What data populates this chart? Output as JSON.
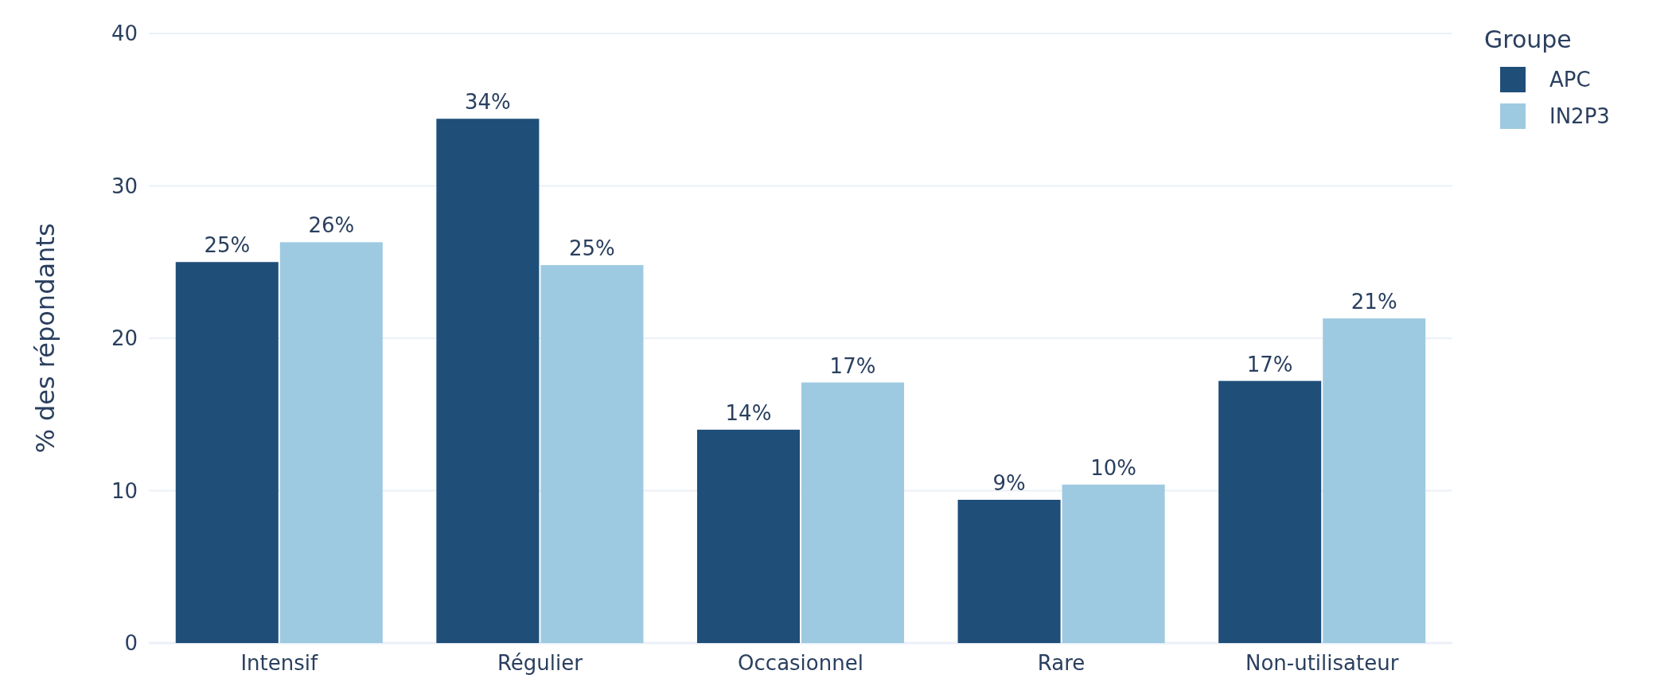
{
  "chart_data": {
    "type": "bar",
    "ylabel": "% des répondants",
    "legend_title": "Groupe",
    "categories": [
      "Intensif",
      "Régulier",
      "Occasionnel",
      "Rare",
      "Non-utilisateur"
    ],
    "series": [
      {
        "name": "APC",
        "color": "#1f4e79",
        "values": [
          25,
          34.4,
          14,
          9.4,
          17.2
        ],
        "value_labels": [
          "25%",
          "34%",
          "14%",
          "9%",
          "17%"
        ]
      },
      {
        "name": "IN2P3",
        "color": "#9ecae1",
        "values": [
          26.3,
          24.8,
          17.1,
          10.4,
          21.3
        ],
        "value_labels": [
          "26%",
          "25%",
          "17%",
          "10%",
          "21%"
        ]
      }
    ],
    "ylim": [
      0,
      40
    ],
    "yticks": [
      0,
      10,
      20,
      30,
      40
    ],
    "grid": "y",
    "legend": "top right"
  }
}
